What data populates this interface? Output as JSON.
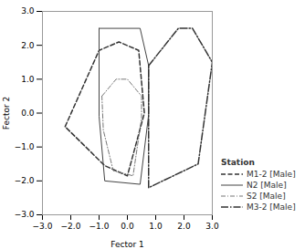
{
  "chart_data": {
    "type": "line",
    "xlabel": "Fector 1",
    "ylabel": "Fector 2",
    "xlim": [
      -3,
      3
    ],
    "ylim": [
      -3,
      3
    ],
    "xticks": [
      -3,
      -2,
      -1,
      0,
      1,
      2,
      3
    ],
    "yticks": [
      -3,
      -2,
      -1,
      0,
      1,
      2,
      3
    ],
    "legend": "lower right",
    "legend_title": "Station",
    "series": [
      {
        "name": "M1-2 [Male]",
        "color": "#333333",
        "line_style": "dashed",
        "x": [
          -2.2,
          -1.0,
          -0.3,
          0.4,
          0.6,
          0.0,
          -0.8,
          -2.2
        ],
        "values": [
          -0.4,
          1.85,
          2.1,
          1.85,
          0.0,
          -1.85,
          -1.55,
          -0.4
        ]
      },
      {
        "name": "N2 [Male]",
        "color": "#444444",
        "line_style": "solid",
        "x": [
          -1.0,
          0.45,
          0.75,
          0.75,
          0.45,
          -0.8,
          -1.0,
          -1.0
        ],
        "values": [
          2.5,
          2.5,
          1.4,
          -0.05,
          -2.1,
          -2.0,
          -0.1,
          2.5
        ]
      },
      {
        "name": "S2 [Male]",
        "color": "#777777",
        "line_style": "dashdot",
        "x": [
          -0.9,
          -0.4,
          0.0,
          0.5,
          0.5,
          0.2,
          -0.5,
          -0.85,
          -0.9
        ],
        "values": [
          0.5,
          1.0,
          1.0,
          0.5,
          -0.15,
          -1.85,
          -1.7,
          -0.5,
          0.5
        ]
      },
      {
        "name": "M3-2 [Male]",
        "color": "#333333",
        "line_style": "longdashdot",
        "x": [
          0.75,
          1.8,
          2.3,
          3.0,
          2.5,
          0.75,
          0.75
        ],
        "values": [
          1.4,
          2.5,
          2.5,
          1.5,
          -1.5,
          -2.2,
          1.4
        ]
      }
    ]
  }
}
